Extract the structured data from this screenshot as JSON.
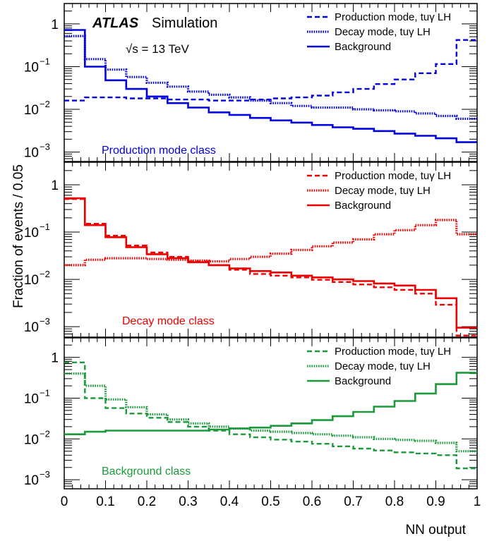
{
  "figure": {
    "atlas_label": "ATLAS",
    "atlas_sub": "Simulation",
    "energy_label": "√s = 13 TeV",
    "ylabel": "Fraction of events / 0.05",
    "xlabel": "NN output"
  },
  "chart_data": [
    {
      "type": "line",
      "class_label": "Production mode class",
      "color": "#0000e0",
      "xlim": [
        0,
        1
      ],
      "ylim": [
        0.0006,
        3
      ],
      "yscale": "log",
      "bin_width": 0.05,
      "x_ticks": [
        "0",
        "0.1",
        "0.2",
        "0.3",
        "0.4",
        "0.5",
        "0.6",
        "0.7",
        "0.8",
        "0.9",
        "1"
      ],
      "y_ticks": [
        "10^-3",
        "10^-2",
        "10^-1",
        "1"
      ],
      "legend_position": "top-right",
      "series": [
        {
          "name": "Production mode, tuγ LH",
          "style": "dashed",
          "values": [
            0.016,
            0.019,
            0.019,
            0.018,
            0.018,
            0.017,
            0.017,
            0.016,
            0.016,
            0.017,
            0.018,
            0.019,
            0.021,
            0.025,
            0.03,
            0.039,
            0.05,
            0.07,
            0.115,
            0.42
          ]
        },
        {
          "name": "Decay mode, tuγ LH",
          "style": "dotted",
          "values": [
            0.52,
            0.15,
            0.085,
            0.057,
            0.042,
            0.034,
            0.026,
            0.022,
            0.019,
            0.016,
            0.014,
            0.012,
            0.011,
            0.011,
            0.01,
            0.0095,
            0.009,
            0.008,
            0.007,
            0.006
          ]
        },
        {
          "name": "Background",
          "style": "solid",
          "values": [
            0.72,
            0.1,
            0.048,
            0.03,
            0.02,
            0.014,
            0.011,
            0.0085,
            0.0074,
            0.0063,
            0.0055,
            0.0049,
            0.0043,
            0.0038,
            0.0035,
            0.0031,
            0.0027,
            0.0024,
            0.0021,
            0.0017
          ]
        }
      ]
    },
    {
      "type": "line",
      "class_label": "Decay mode class",
      "color": "#ee0000",
      "xlim": [
        0,
        1
      ],
      "ylim": [
        0.0006,
        3
      ],
      "yscale": "log",
      "bin_width": 0.05,
      "x_ticks": [
        "0",
        "0.1",
        "0.2",
        "0.3",
        "0.4",
        "0.5",
        "0.6",
        "0.7",
        "0.8",
        "0.9",
        "1"
      ],
      "y_ticks": [
        "10^-3",
        "10^-2",
        "10^-1",
        "1"
      ],
      "legend_position": "top-right",
      "series": [
        {
          "name": "Production mode, tuγ LH",
          "style": "dashed",
          "values": [
            0.5,
            0.15,
            0.084,
            0.052,
            0.037,
            0.03,
            0.024,
            0.02,
            0.016,
            0.013,
            0.012,
            0.011,
            0.0098,
            0.0088,
            0.0078,
            0.0068,
            0.006,
            0.005,
            0.0029,
            0.00065
          ]
        },
        {
          "name": "Decay mode, tuγ LH",
          "style": "dotted",
          "values": [
            0.02,
            0.026,
            0.028,
            0.028,
            0.027,
            0.026,
            0.025,
            0.024,
            0.027,
            0.03,
            0.035,
            0.042,
            0.05,
            0.06,
            0.07,
            0.09,
            0.11,
            0.14,
            0.18,
            0.09
          ]
        },
        {
          "name": "Background",
          "style": "solid",
          "values": [
            0.52,
            0.14,
            0.078,
            0.048,
            0.034,
            0.028,
            0.023,
            0.02,
            0.017,
            0.015,
            0.014,
            0.012,
            0.011,
            0.01,
            0.0092,
            0.0082,
            0.0074,
            0.006,
            0.004,
            0.00095
          ]
        }
      ]
    },
    {
      "type": "line",
      "class_label": "Background class",
      "color": "#1a9a3a",
      "xlim": [
        0,
        1
      ],
      "ylim": [
        0.0006,
        3
      ],
      "yscale": "log",
      "bin_width": 0.05,
      "x_ticks": [
        "0",
        "0.1",
        "0.2",
        "0.3",
        "0.4",
        "0.5",
        "0.6",
        "0.7",
        "0.8",
        "0.9",
        "1"
      ],
      "y_ticks": [
        "10^-3",
        "10^-2",
        "10^-1",
        "1"
      ],
      "legend_position": "top-right",
      "series": [
        {
          "name": "Production mode, tuγ LH",
          "style": "dashed",
          "values": [
            0.75,
            0.1,
            0.057,
            0.042,
            0.033,
            0.026,
            0.02,
            0.016,
            0.013,
            0.011,
            0.0096,
            0.0086,
            0.0076,
            0.0066,
            0.0058,
            0.0052,
            0.0047,
            0.0044,
            0.004,
            0.0019
          ]
        },
        {
          "name": "Decay mode, tuγ LH",
          "style": "dotted",
          "values": [
            0.4,
            0.2,
            0.093,
            0.06,
            0.04,
            0.03,
            0.024,
            0.02,
            0.018,
            0.016,
            0.015,
            0.014,
            0.013,
            0.012,
            0.011,
            0.01,
            0.0095,
            0.009,
            0.008,
            0.005
          ]
        },
        {
          "name": "Background",
          "style": "solid",
          "values": [
            0.013,
            0.015,
            0.016,
            0.016,
            0.016,
            0.016,
            0.016,
            0.017,
            0.018,
            0.019,
            0.021,
            0.024,
            0.029,
            0.036,
            0.046,
            0.062,
            0.085,
            0.13,
            0.22,
            0.42
          ]
        }
      ]
    }
  ]
}
